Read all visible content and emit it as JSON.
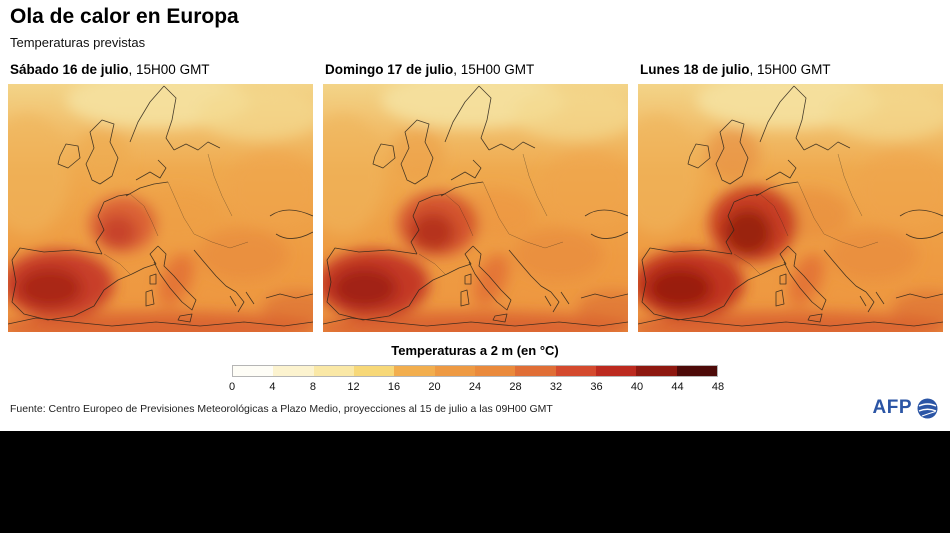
{
  "header": {
    "title": "Ola de calor en Europa",
    "subtitle": "Temperaturas previstas"
  },
  "panels": [
    {
      "day": "Sábado 16 de julio",
      "time": ", 15H00 GMT"
    },
    {
      "day": "Domingo 17 de julio",
      "time": ", 15H00 GMT"
    },
    {
      "day": "Lunes 18 de julio",
      "time": ", 15H00 GMT"
    }
  ],
  "legend": {
    "title": "Temperaturas a 2 m (en °C)",
    "ticks": [
      "0",
      "4",
      "8",
      "12",
      "16",
      "20",
      "24",
      "28",
      "32",
      "36",
      "40",
      "44",
      "48"
    ],
    "segment_colors": [
      "#fefdf6",
      "#fcf3cf",
      "#fae8a6",
      "#f7d878",
      "#f2ae4e",
      "#ee9a43",
      "#ea8a3c",
      "#e06e36",
      "#d44a2e",
      "#bc2a1f",
      "#8e1810",
      "#4d0a08"
    ]
  },
  "maps": {
    "sea_gradient": [
      "#f3d488",
      "#efa94e",
      "#ee9b42",
      "#ed9640"
    ],
    "coast_color": "#2b241b",
    "days": [
      {
        "uk": "#eeab4e",
        "france": "#d95c33",
        "france_core": "#c6402a",
        "france_rx": 34,
        "france_ry": 28,
        "iberia": "#c63a27",
        "iberia_core": "#a62314",
        "central": "#ef9f46"
      },
      {
        "uk": "#eca14a",
        "france": "#d14c2b",
        "france_core": "#b12d1b",
        "france_rx": 40,
        "france_ry": 32,
        "iberia": "#c23422",
        "iberia_core": "#9e1f12",
        "central": "#ec9440"
      },
      {
        "uk": "#e68f40",
        "france": "#c43420",
        "france_core": "#931c0f",
        "france_rx": 44,
        "france_ry": 38,
        "iberia": "#bf3020",
        "iberia_core": "#961b0e",
        "central": "#e8883c"
      }
    ]
  },
  "footer": {
    "source": "Fuente: Centro Europeo de Previsiones Meteorológicas a Plazo Medio, proyecciones al 15 de julio a las 09H00 GMT",
    "logo_text": "AFP",
    "logo_color": "#2b55a5"
  }
}
